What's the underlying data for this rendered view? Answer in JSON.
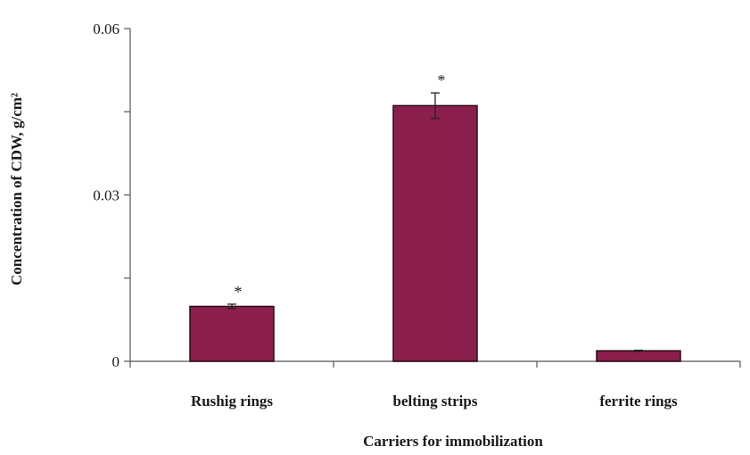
{
  "chart_data": {
    "type": "bar",
    "title": "",
    "xlabel": "Carriers for immobilization",
    "ylabel": "Concentration of CDW, g/cm²",
    "categories": [
      "Rushig rings",
      "belting strips",
      "ferrite rings"
    ],
    "values": [
      0.0099,
      0.0461,
      0.0019
    ],
    "error": [
      0.0004,
      0.0023,
      0.0001
    ],
    "significance": [
      "*",
      "*",
      ""
    ],
    "ylim": [
      0,
      0.06
    ],
    "yticks": [
      0,
      0.03,
      0.06
    ],
    "ytick_labels": [
      "0",
      "0.03",
      "0.06"
    ],
    "grid": false,
    "legend": "none",
    "bar_color": "#8a1f4e",
    "bar_edge_color": "#2b0a18"
  }
}
